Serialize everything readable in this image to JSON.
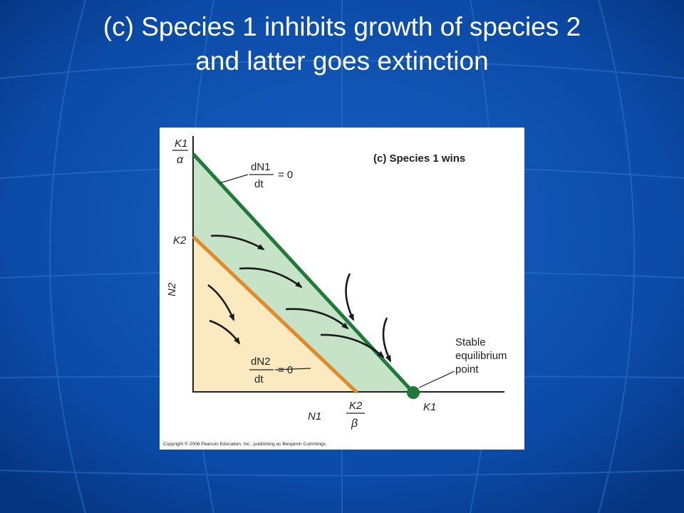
{
  "slide": {
    "title_line1": "(c) Species 1 inhibits growth of species 2",
    "title_line2": "and latter goes extinction",
    "background_color": "#0a3f92"
  },
  "figure": {
    "panel_title": "(c)  Species 1 wins",
    "y_axis_label": "N2",
    "x_axis_label": "N1",
    "y_tick_k1_alpha": {
      "numerator": "K1",
      "denominator": "α"
    },
    "y_tick_k2": "K2",
    "x_tick_k2_beta": {
      "numerator": "K2",
      "denominator": "β"
    },
    "x_tick_k1": "K1",
    "isocline1": {
      "numerator": "dN1",
      "denominator": "dt",
      "rhs": "= 0",
      "color": "#1f7a3a"
    },
    "isocline2": {
      "numerator": "dN2",
      "denominator": "dt",
      "rhs": "= 0",
      "color": "#e08a2a"
    },
    "equilibrium_label": [
      "Stable",
      "equilibrium",
      "point"
    ],
    "region_colors": {
      "green": "#c6e3c8",
      "yellow": "#fbe9bf"
    },
    "copyright": "Copyright © 2006 Pearson Education, Inc., publishing as Benjamin Cummings"
  }
}
